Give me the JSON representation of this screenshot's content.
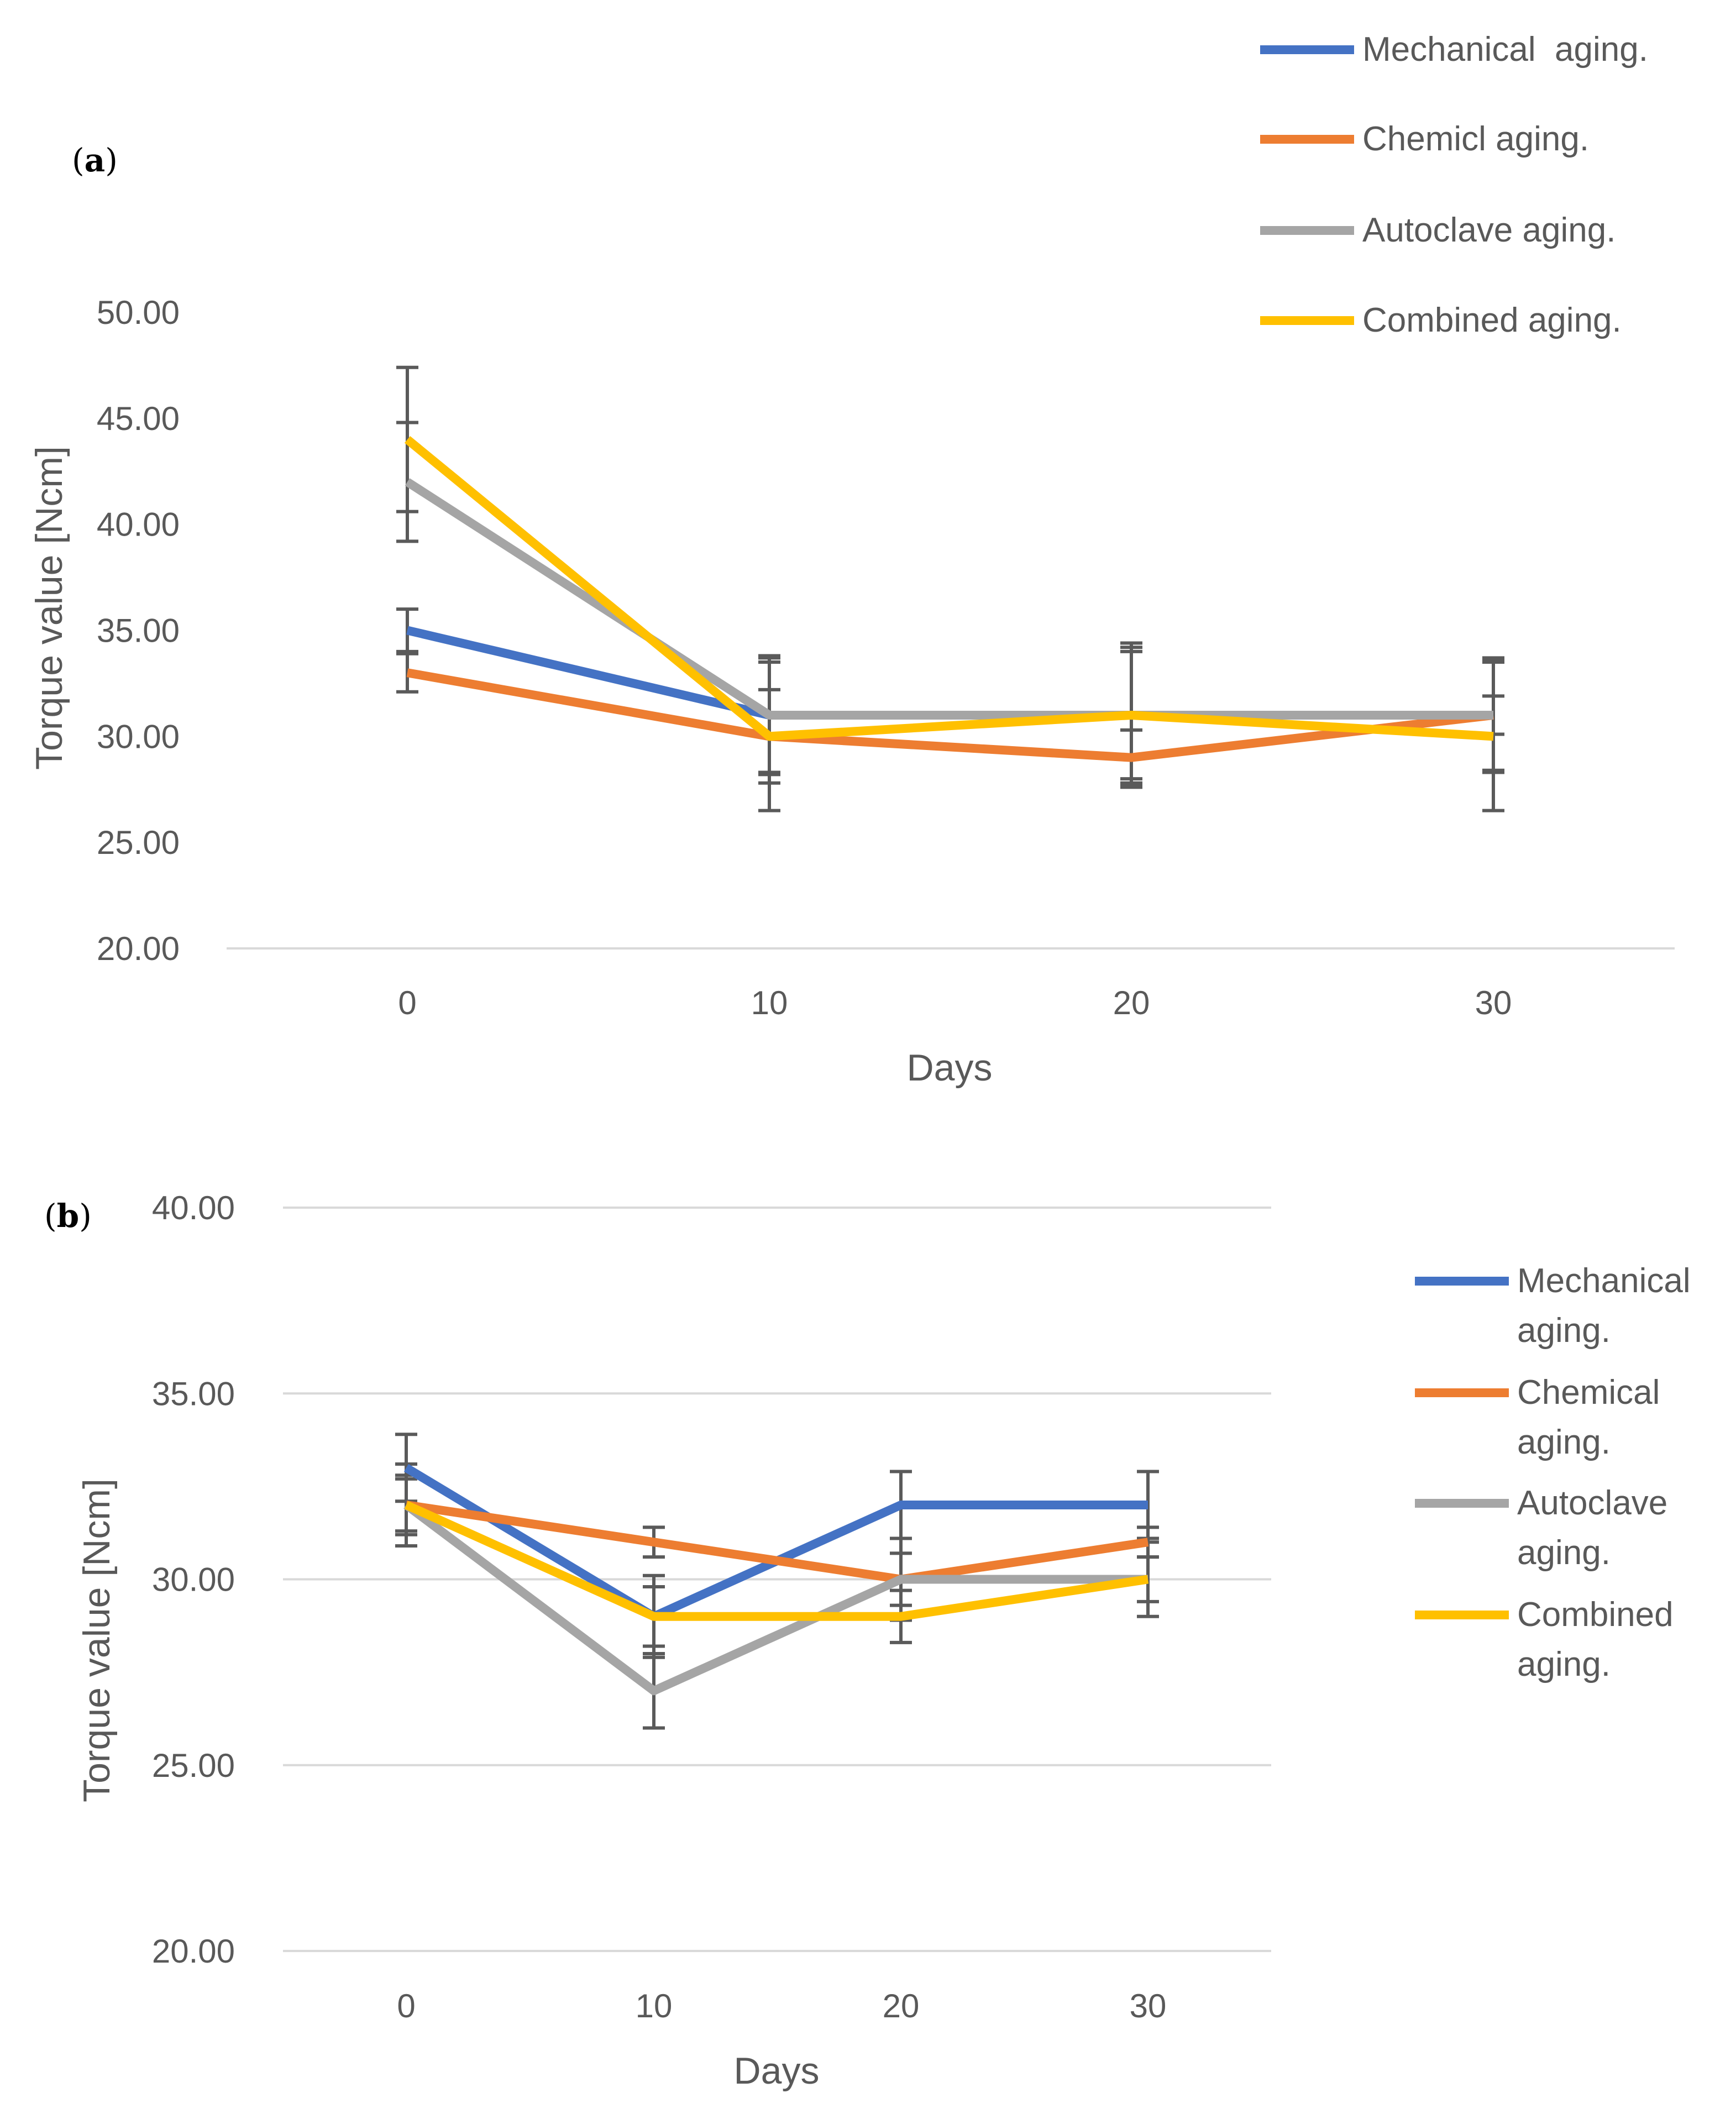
{
  "chart_data": [
    {
      "type": "line",
      "panel_label": "a",
      "xlabel": "Days",
      "ylabel": "Torque value [Ncm]",
      "categories": [
        "0",
        "10",
        "20",
        "30"
      ],
      "ylim": [
        20,
        50
      ],
      "yticks": [
        "20.00",
        "25.00",
        "30.00",
        "35.00",
        "40.00",
        "45.00",
        "50.00"
      ],
      "grid": false,
      "legend_position": "top-right",
      "series": [
        {
          "name": "Mechanical  aging.",
          "color": "#4472C4",
          "values": [
            35,
            31,
            31,
            31
          ],
          "errors": [
            1,
            2.7,
            3,
            2.7
          ]
        },
        {
          "name": "Chemicl aging.",
          "color": "#ED7D31",
          "values": [
            33,
            30,
            29,
            31
          ],
          "errors": [
            0.9,
            2.2,
            1.3,
            0.9
          ]
        },
        {
          "name": "Autoclave aging.",
          "color": "#A5A5A5",
          "values": [
            42,
            31,
            31,
            31
          ],
          "errors": [
            2.8,
            2.8,
            3.4,
            2.6
          ]
        },
        {
          "name": "Combined aging.",
          "color": "#FFC000",
          "values": [
            44,
            30,
            31,
            30
          ],
          "errors": [
            3.4,
            3.5,
            3.2,
            3.5
          ]
        }
      ]
    },
    {
      "type": "line",
      "panel_label": "b",
      "xlabel": "Days",
      "ylabel": "Torque value [Ncm]",
      "categories": [
        "0",
        "10",
        "20",
        "30"
      ],
      "ylim": [
        20,
        40
      ],
      "yticks": [
        "20.00",
        "25.00",
        "30.00",
        "35.00",
        "40.00"
      ],
      "grid": true,
      "legend_position": "right",
      "series": [
        {
          "name": "Mechanical aging.",
          "color": "#4472C4",
          "values": [
            33,
            29,
            32,
            32
          ],
          "errors": [
            0.9,
            0.8,
            0.9,
            0.9
          ]
        },
        {
          "name": "Chemical aging.",
          "color": "#ED7D31",
          "values": [
            32,
            31,
            30,
            31
          ],
          "errors": [
            0.8,
            0.4,
            0.7,
            0.4
          ]
        },
        {
          "name": "Autoclave aging.",
          "color": "#A5A5A5",
          "values": [
            32,
            27,
            30,
            30
          ],
          "errors": [
            0.7,
            1,
            1.1,
            0.6
          ]
        },
        {
          "name": "Combined aging.",
          "color": "#FFC000",
          "values": [
            32,
            29,
            29,
            30
          ],
          "errors": [
            1.1,
            1.1,
            0.7,
            1
          ]
        }
      ]
    }
  ]
}
